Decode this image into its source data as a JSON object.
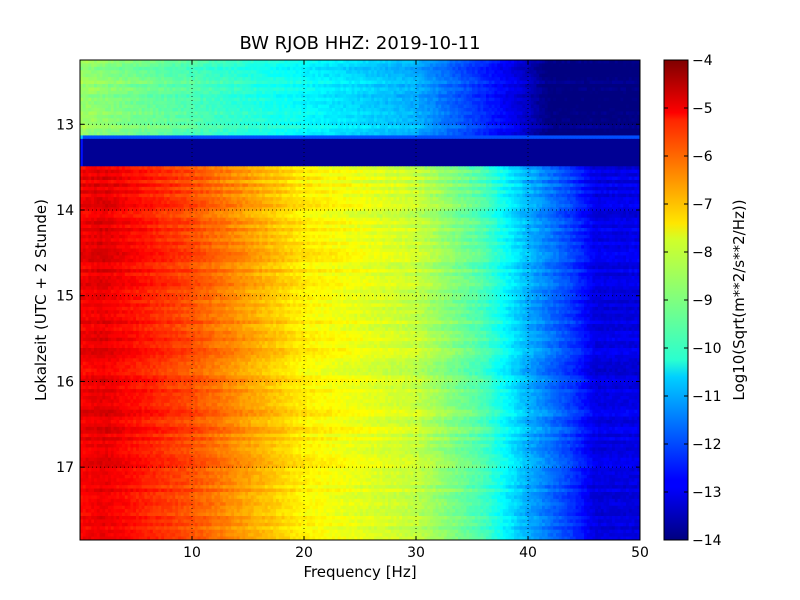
{
  "chart_data": {
    "type": "heatmap",
    "title": "BW RJOB HHZ: 2019-10-11",
    "xlabel": "Frequency [Hz]",
    "ylabel": "Lokalzeit (UTC + 2 Stunde)",
    "colorbar_label": "Log10(Sqrt(m**2/s**2/Hz))",
    "xlim": [
      0,
      50
    ],
    "ylim": [
      12.25,
      17.85
    ],
    "y_inverted": true,
    "x_ticks": [
      10,
      20,
      30,
      40,
      50
    ],
    "y_ticks": [
      13,
      14,
      15,
      16,
      17
    ],
    "colorbar_range": [
      -14,
      -4
    ],
    "colorbar_ticks": [
      -4,
      -5,
      -6,
      -7,
      -8,
      -9,
      -10,
      -11,
      -12,
      -13,
      -14
    ],
    "colormap": "jet",
    "grid": true,
    "time_segments": [
      {
        "start": 12.25,
        "end": 13.12,
        "level_at_0Hz": -8.7,
        "level_at_20Hz": -10.2,
        "level_at_30Hz": -11.0,
        "level_at_40Hz": -13.0,
        "level_above_40Hz": -14.0
      },
      {
        "start": 13.12,
        "end": 13.18,
        "uniform_level": -12.0
      },
      {
        "start": 13.18,
        "end": 13.47,
        "uniform_level": -13.8
      },
      {
        "start": 13.47,
        "end": 17.85,
        "level_at_0Hz": -5.2,
        "level_at_10Hz": -6.0,
        "level_at_20Hz": -7.6,
        "level_at_30Hz": -8.3,
        "level_at_40Hz": -11.0,
        "level_above_45Hz": -13.0
      }
    ]
  }
}
